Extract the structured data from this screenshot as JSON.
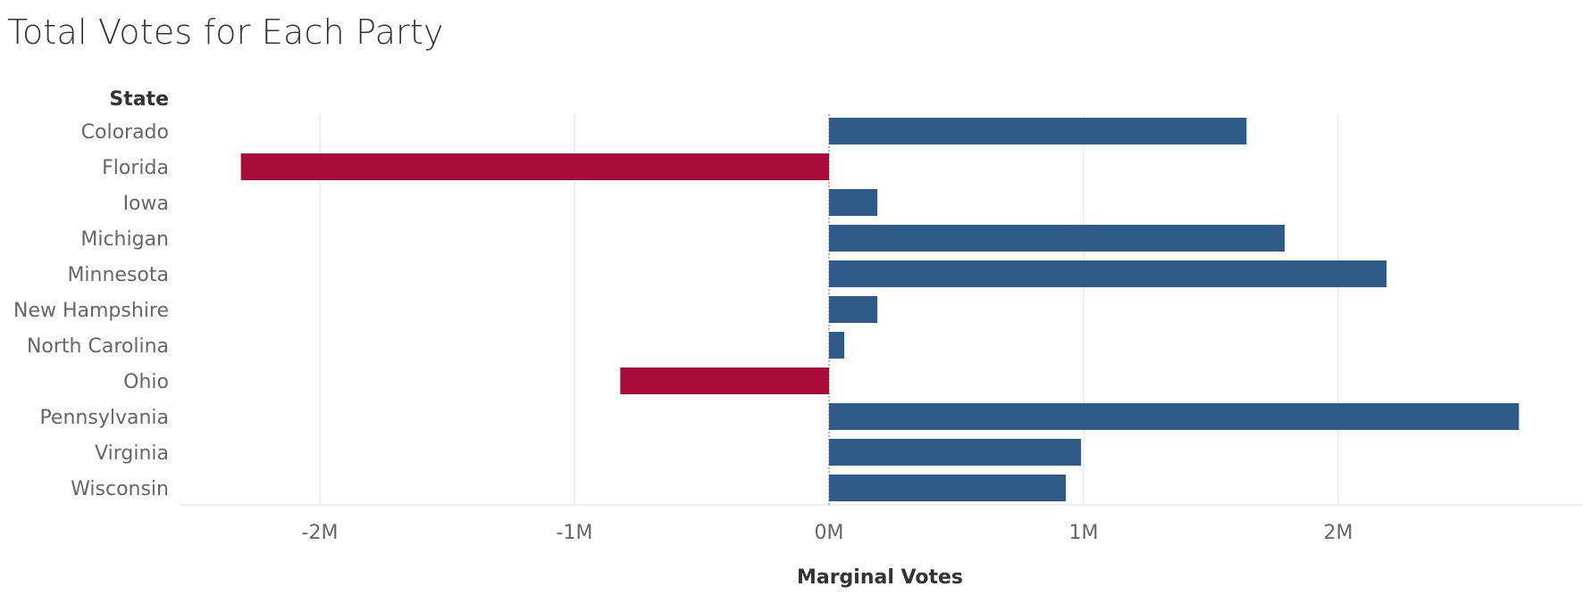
{
  "page": {
    "title": "Total Votes for Each Party"
  },
  "colors": {
    "positive": "#2e5b88",
    "negative": "#a90d3b",
    "grid": "#ebebeb",
    "zeroline": "#9a9a9a"
  },
  "chart_data": {
    "type": "bar",
    "orientation": "horizontal",
    "title": "Total Votes for Each Party",
    "row_header": "State",
    "xlabel": "Marginal Votes",
    "categories": [
      "Colorado",
      "Florida",
      "Iowa",
      "Michigan",
      "Minnesota",
      "New Hampshire",
      "North Carolina",
      "Ohio",
      "Pennsylvania",
      "Virginia",
      "Wisconsin"
    ],
    "values": [
      1640000,
      -2310000,
      190000,
      1790000,
      2190000,
      190000,
      60000,
      -820000,
      2710000,
      990000,
      930000
    ],
    "xlim": [
      -2550000,
      2950000
    ],
    "ticks": [
      -2000000,
      -1000000,
      0,
      1000000,
      2000000
    ],
    "tick_labels": [
      "-2M",
      "-1M",
      "0M",
      "1M",
      "2M"
    ],
    "grid": true,
    "legend": "none"
  }
}
